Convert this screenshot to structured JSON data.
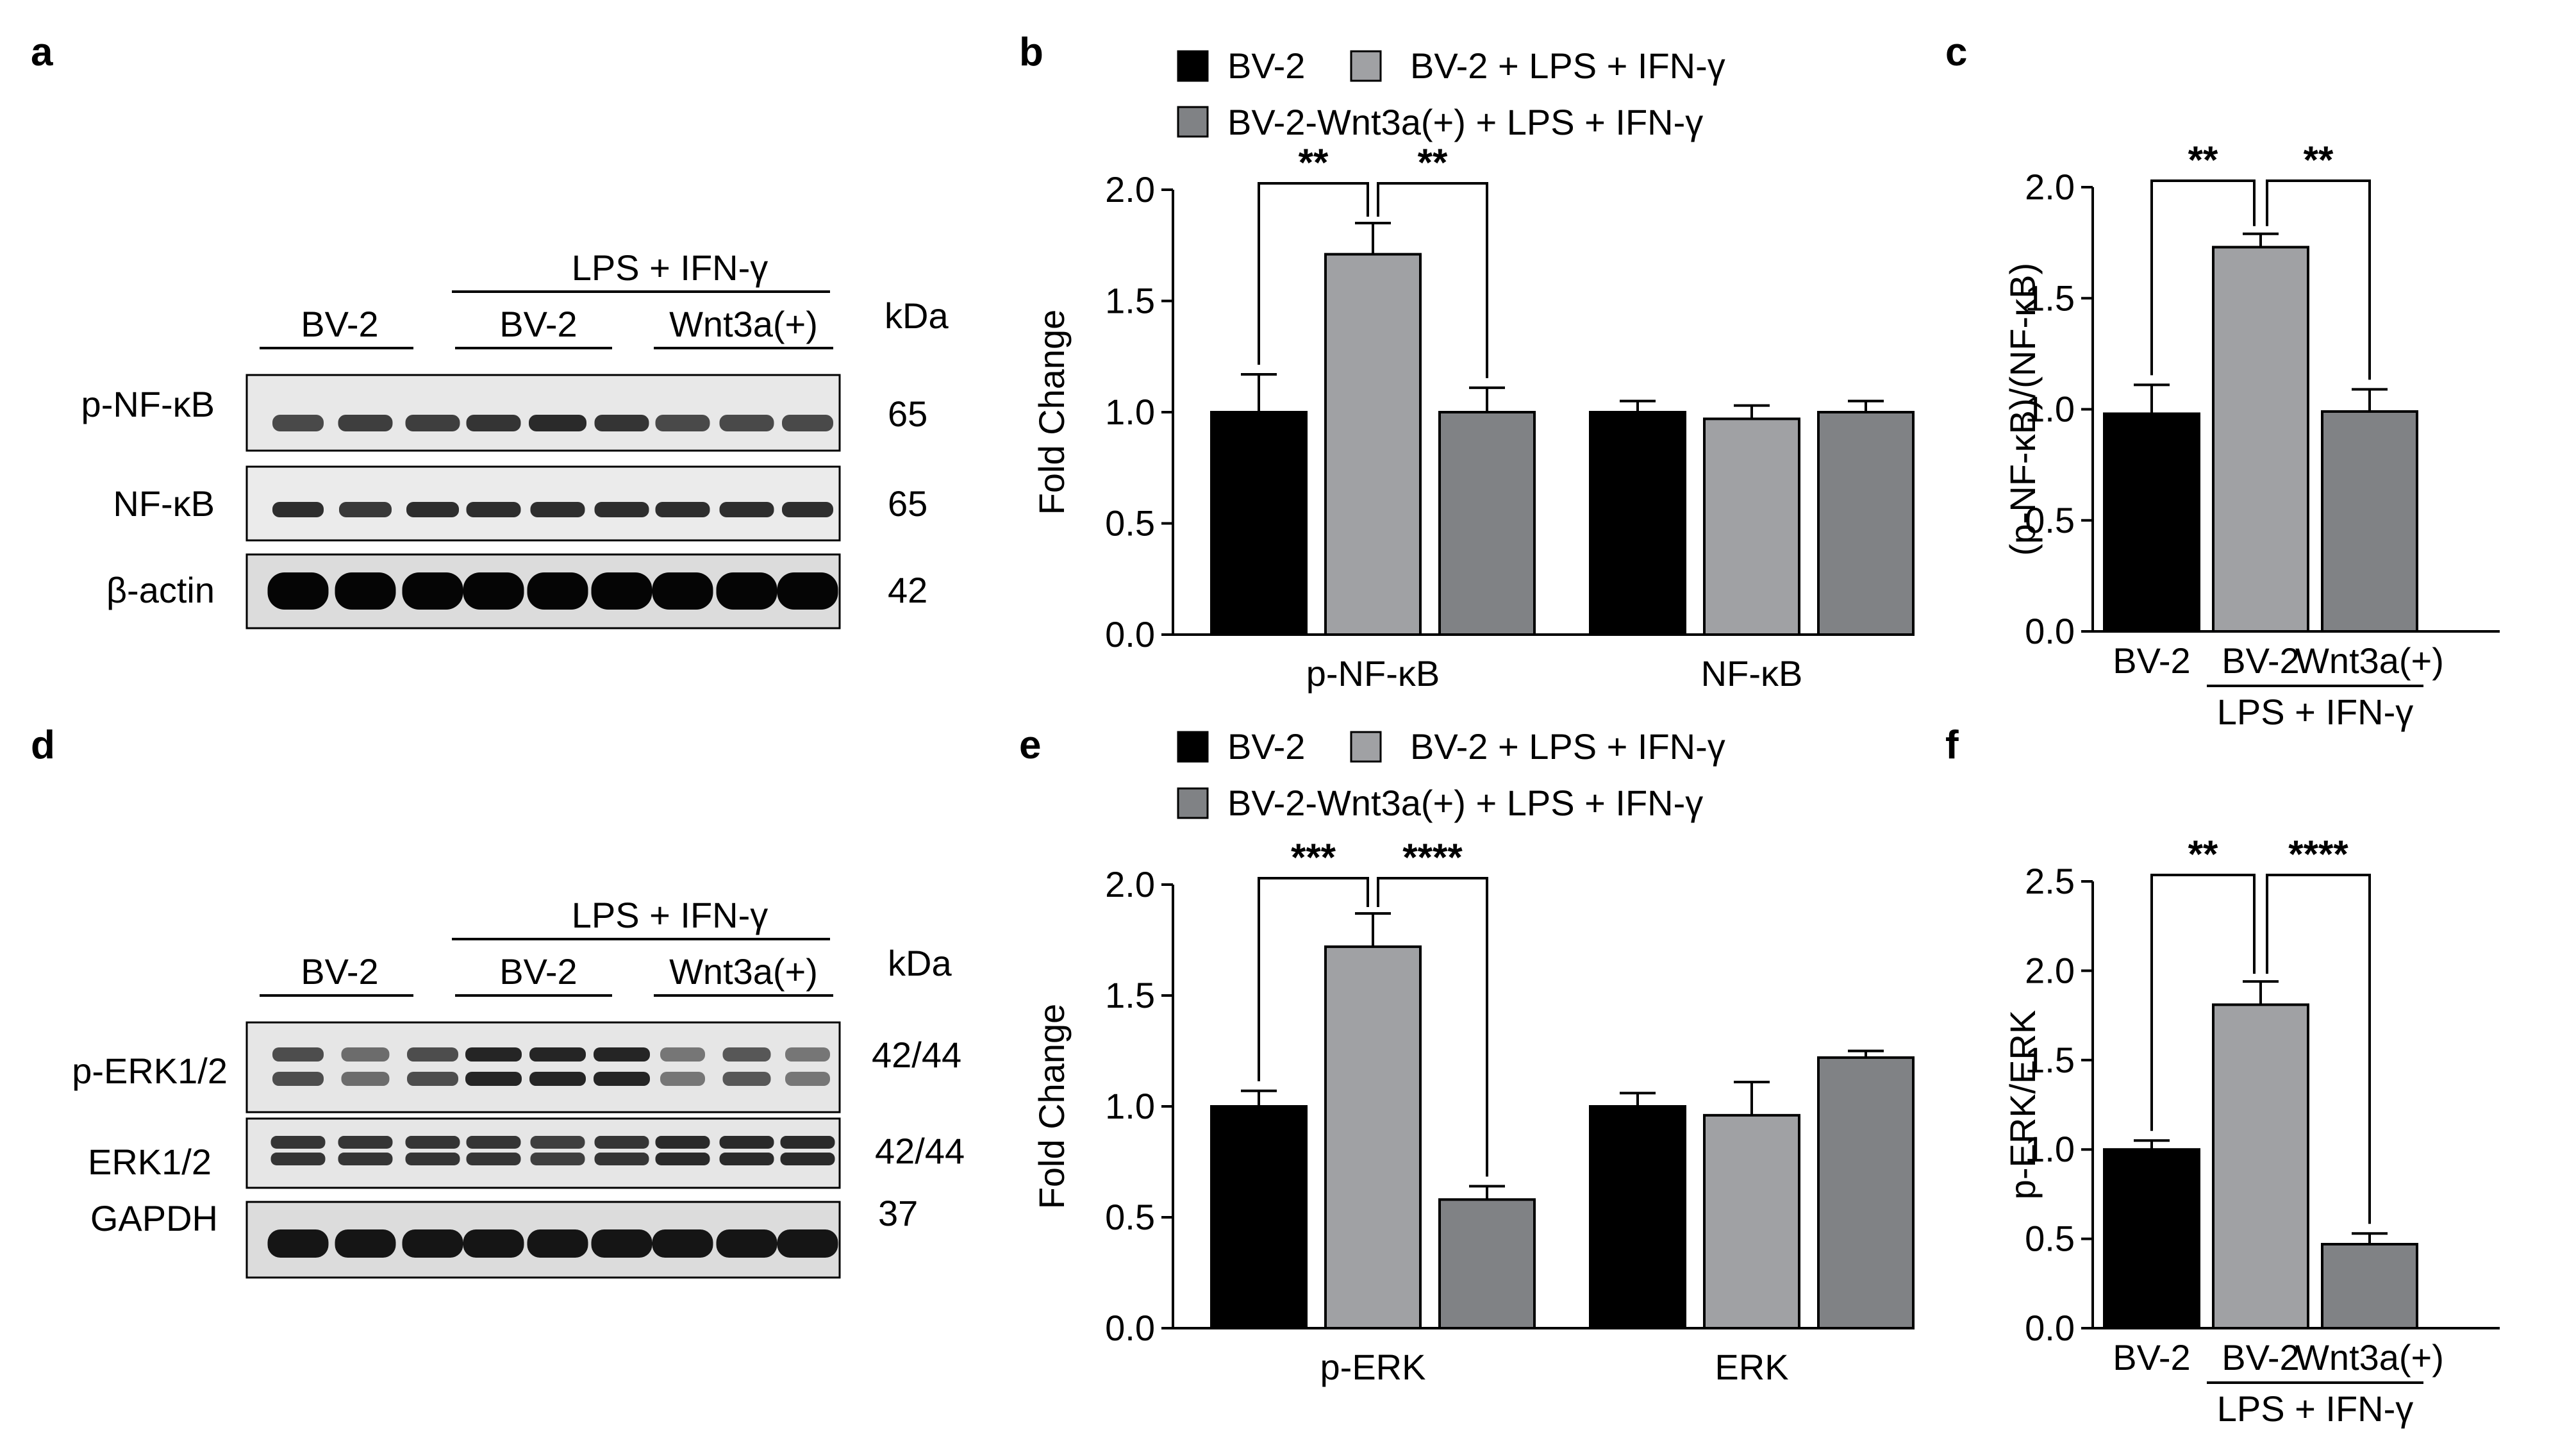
{
  "panel_labels": {
    "a": "a",
    "b": "b",
    "c": "c",
    "d": "d",
    "e": "e",
    "f": "f"
  },
  "colors": {
    "bv2": "#000000",
    "bv2_lps": "#a0a1a4",
    "wnt3a": "#808285"
  },
  "legend": {
    "item1": "BV-2",
    "item2": "BV-2  + LPS + IFN-γ",
    "item3": "BV-2-Wnt3a(+) + LPS + IFN-γ"
  },
  "blot_a": {
    "treatment": "LPS + IFN-γ",
    "groups": [
      "BV-2",
      "BV-2",
      "Wnt3a(+)"
    ],
    "kda_header": "kDa",
    "rows": [
      {
        "name": "p-NF-κB",
        "kda": "65"
      },
      {
        "name": "NF-κB",
        "kda": "65"
      },
      {
        "name": "β-actin",
        "kda": "42"
      }
    ]
  },
  "blot_d": {
    "treatment": "LPS + IFN-γ",
    "groups": [
      "BV-2",
      "BV-2",
      "Wnt3a(+)"
    ],
    "kda_header": "kDa",
    "rows": [
      {
        "name": "p-ERK1/2",
        "kda": "42/44"
      },
      {
        "name": "ERK1/2",
        "kda": "42/44"
      },
      {
        "name": "GAPDH",
        "kda": "37"
      }
    ]
  },
  "chart_data": [
    {
      "id": "b",
      "type": "bar",
      "ylabel": "Fold Change",
      "ylim": [
        0,
        2.0
      ],
      "yticks": [
        "0.0",
        "0.5",
        "1.0",
        "1.5",
        "2.0"
      ],
      "categories": [
        "p-NF-κB",
        "NF-κB"
      ],
      "series": [
        {
          "name": "BV-2",
          "values": [
            1.0,
            1.0
          ],
          "errors": [
            0.17,
            0.05
          ]
        },
        {
          "name": "BV-2  + LPS + IFN-γ",
          "values": [
            1.71,
            0.97
          ],
          "errors": [
            0.14,
            0.06
          ]
        },
        {
          "name": "BV-2-Wnt3a(+) + LPS + IFN-γ",
          "values": [
            1.0,
            1.0
          ],
          "errors": [
            0.11,
            0.05
          ]
        }
      ],
      "significance": [
        "**",
        "**"
      ]
    },
    {
      "id": "c",
      "type": "bar",
      "ylabel": "(p-NF-κB)/(NF-κB)",
      "ylim": [
        0,
        2.0
      ],
      "yticks": [
        "0.0",
        "0.5",
        "1.0",
        "1.5",
        "2.0"
      ],
      "categories": [
        "BV-2",
        "BV-2",
        "Wnt3a(+)"
      ],
      "group_label": "LPS + IFN-γ",
      "values": [
        0.98,
        1.73,
        0.99
      ],
      "errors": [
        0.13,
        0.06,
        0.1
      ],
      "significance": [
        "**",
        "**"
      ]
    },
    {
      "id": "e",
      "type": "bar",
      "ylabel": "Fold Change",
      "ylim": [
        0,
        2.0
      ],
      "yticks": [
        "0.0",
        "0.5",
        "1.0",
        "1.5",
        "2.0"
      ],
      "categories": [
        "p-ERK",
        "ERK"
      ],
      "series": [
        {
          "name": "BV-2",
          "values": [
            1.0,
            1.0
          ],
          "errors": [
            0.07,
            0.06
          ]
        },
        {
          "name": "BV-2  + LPS + IFN-γ",
          "values": [
            1.72,
            0.96
          ],
          "errors": [
            0.15,
            0.15
          ]
        },
        {
          "name": "BV-2-Wnt3a(+) + LPS + IFN-γ",
          "values": [
            0.58,
            1.22
          ],
          "errors": [
            0.06,
            0.03
          ]
        }
      ],
      "significance": [
        "***",
        "****"
      ]
    },
    {
      "id": "f",
      "type": "bar",
      "ylabel": "p-ERK/ERK",
      "ylim": [
        0,
        2.5
      ],
      "yticks": [
        "0.0",
        "0.5",
        "1.0",
        "1.5",
        "2.0",
        "2.5"
      ],
      "categories": [
        "BV-2",
        "BV-2",
        "Wnt3a(+)"
      ],
      "group_label": "LPS + IFN-γ",
      "values": [
        1.0,
        1.81,
        0.47
      ],
      "errors": [
        0.05,
        0.13,
        0.06
      ],
      "significance": [
        "**",
        "****"
      ]
    }
  ]
}
